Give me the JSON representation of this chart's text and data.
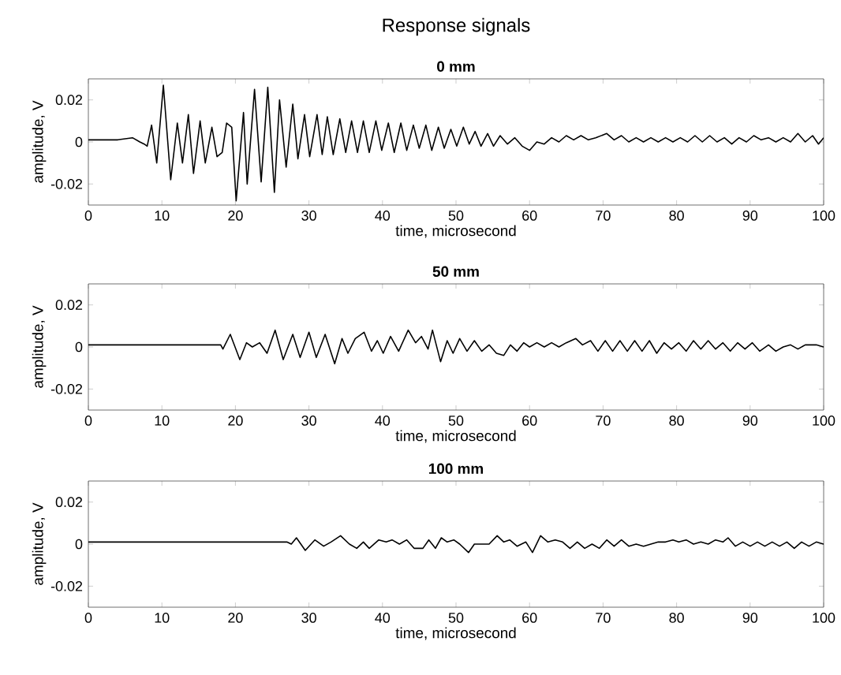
{
  "chart_data": [
    {
      "type": "line",
      "title": "Response signals",
      "subtitle": "0 mm",
      "xlabel": "time, microsecond",
      "ylabel": "amplitude, V",
      "color": "#000000",
      "xlim": [
        0,
        100
      ],
      "xticks": [
        0,
        10,
        20,
        30,
        40,
        50,
        60,
        70,
        80,
        90,
        100
      ],
      "ylim": [
        -0.03,
        0.03
      ],
      "yticks": [
        -0.02,
        0,
        0.02
      ],
      "x": [
        0,
        2,
        4,
        6,
        7,
        7.6,
        8,
        8.6,
        9.3,
        10.2,
        11.2,
        12.1,
        12.8,
        13.6,
        14.3,
        15.2,
        15.9,
        16.8,
        17.5,
        18.2,
        18.8,
        19.5,
        20.1,
        21.1,
        21.6,
        22.6,
        23.5,
        24.4,
        25.3,
        26.0,
        26.9,
        27.8,
        28.5,
        29.4,
        30.1,
        31.1,
        31.8,
        32.5,
        33.3,
        34.2,
        35.0,
        35.8,
        36.6,
        37.4,
        38.2,
        39.1,
        39.9,
        40.8,
        41.6,
        42.5,
        43.3,
        44.2,
        45.0,
        45.9,
        46.7,
        47.6,
        48.4,
        49.3,
        50.1,
        51.0,
        51.8,
        52.6,
        53.4,
        54.3,
        55.1,
        56,
        57,
        58,
        59,
        60,
        61,
        62,
        63,
        64,
        65,
        66,
        67,
        68,
        69,
        70.5,
        71.5,
        72.5,
        73.5,
        74.5,
        75.5,
        76.5,
        77.5,
        78.5,
        79.5,
        80.5,
        81.5,
        82.5,
        83.5,
        84.5,
        85.5,
        86.5,
        87.5,
        88.5,
        89.5,
        90.5,
        91.5,
        92.5,
        93.5,
        94.5,
        95.5,
        96.5,
        97.5,
        98.5,
        99.3,
        100
      ],
      "values": [
        0.001,
        0.001,
        0.001,
        0.002,
        0,
        -0.001,
        -0.002,
        0.008,
        -0.01,
        0.027,
        -0.018,
        0.009,
        -0.01,
        0.013,
        -0.015,
        0.01,
        -0.01,
        0.007,
        -0.007,
        -0.005,
        0.009,
        0.007,
        -0.028,
        0.014,
        -0.02,
        0.025,
        -0.019,
        0.026,
        -0.024,
        0.02,
        -0.012,
        0.018,
        -0.008,
        0.013,
        -0.007,
        0.013,
        -0.006,
        0.012,
        -0.006,
        0.011,
        -0.005,
        0.01,
        -0.005,
        0.01,
        -0.005,
        0.01,
        -0.004,
        0.009,
        -0.005,
        0.009,
        -0.004,
        0.008,
        -0.003,
        0.008,
        -0.004,
        0.007,
        -0.003,
        0.006,
        -0.002,
        0.007,
        -0.001,
        0.005,
        -0.002,
        0.004,
        -0.002,
        0.003,
        -0.001,
        0.002,
        -0.002,
        -0.004,
        0,
        -0.001,
        0.002,
        0,
        0.003,
        0.001,
        0.003,
        0.001,
        0.002,
        0.004,
        0.001,
        0.003,
        0,
        0.002,
        0,
        0.002,
        0,
        0.002,
        0,
        0.002,
        0,
        0.003,
        0,
        0.003,
        0,
        0.002,
        -0.001,
        0.002,
        0,
        0.003,
        0.001,
        0.002,
        0,
        0.002,
        0,
        0.004,
        0,
        0.003,
        -0.001,
        0.002
      ]
    },
    {
      "type": "line",
      "title": "50 mm",
      "xlabel": "time, microsecond",
      "ylabel": "amplitude, V",
      "color": "#000000",
      "xlim": [
        0,
        100
      ],
      "xticks": [
        0,
        10,
        20,
        30,
        40,
        50,
        60,
        70,
        80,
        90,
        100
      ],
      "ylim": [
        -0.03,
        0.03
      ],
      "yticks": [
        -0.02,
        0,
        0.02
      ],
      "x": [
        0,
        5,
        10,
        15,
        18,
        18.3,
        19.3,
        20.6,
        21.5,
        22.3,
        23.3,
        24.3,
        25.4,
        26.5,
        27.8,
        28.8,
        30.0,
        31.0,
        32.2,
        33.5,
        34.5,
        35.3,
        36.3,
        37.5,
        38.5,
        39.3,
        40.1,
        41.1,
        42.2,
        43.5,
        44.5,
        45.3,
        46.2,
        46.8,
        47.9,
        48.8,
        49.6,
        50.5,
        51.5,
        52.5,
        53.5,
        54.5,
        55.5,
        56.5,
        57.4,
        58.3,
        59.2,
        60,
        61,
        62,
        63,
        64,
        65,
        66.3,
        67.2,
        68.3,
        69.3,
        70.3,
        71.3,
        72.3,
        73.3,
        74.3,
        75.3,
        76.3,
        77.3,
        78.3,
        79.3,
        80.3,
        81.3,
        82.3,
        83.3,
        84.3,
        85.3,
        86.3,
        87.3,
        88.3,
        89.3,
        90.3,
        91.3,
        92.5,
        93.5,
        94.5,
        95.5,
        96.5,
        97.5,
        99,
        100
      ],
      "values": [
        0.001,
        0.001,
        0.001,
        0.001,
        0.001,
        -0.001,
        0.006,
        -0.006,
        0.002,
        0,
        0.002,
        -0.003,
        0.008,
        -0.006,
        0.006,
        -0.005,
        0.007,
        -0.005,
        0.006,
        -0.008,
        0.004,
        -0.003,
        0.004,
        0.007,
        -0.002,
        0.003,
        -0.003,
        0.005,
        -0.002,
        0.008,
        0.002,
        0.005,
        -0.001,
        0.008,
        -0.007,
        0.003,
        -0.003,
        0.004,
        -0.002,
        0.003,
        -0.002,
        0.001,
        -0.003,
        -0.004,
        0.001,
        -0.002,
        0.002,
        0,
        0.002,
        0,
        0.002,
        0,
        0.002,
        0.004,
        0.001,
        0.003,
        -0.002,
        0.003,
        -0.002,
        0.003,
        -0.002,
        0.003,
        -0.002,
        0.003,
        -0.003,
        0.002,
        -0.001,
        0.002,
        -0.002,
        0.003,
        -0.001,
        0.003,
        -0.001,
        0.002,
        -0.002,
        0.002,
        -0.001,
        0.002,
        -0.002,
        0.001,
        -0.002,
        0,
        0.001,
        -0.001,
        0.001,
        0.001,
        0
      ]
    },
    {
      "type": "line",
      "title": "100 mm",
      "xlabel": "time, microsecond",
      "ylabel": "amplitude, V",
      "color": "#000000",
      "xlim": [
        0,
        100
      ],
      "xticks": [
        0,
        10,
        20,
        30,
        40,
        50,
        60,
        70,
        80,
        90,
        100
      ],
      "ylim": [
        -0.03,
        0.03
      ],
      "yticks": [
        -0.02,
        0,
        0.02
      ],
      "x": [
        0,
        5,
        10,
        15,
        20,
        25,
        27,
        27.6,
        28.3,
        29.5,
        30.8,
        32,
        33,
        34.3,
        35.5,
        36.5,
        37.4,
        38.2,
        39.5,
        40.5,
        41.3,
        42.3,
        43.3,
        44.3,
        45.5,
        46.3,
        47.2,
        48,
        48.8,
        49.7,
        50.5,
        51.7,
        52.5,
        53.5,
        54.5,
        55.6,
        56.5,
        57.3,
        58.3,
        59.5,
        60.4,
        61.5,
        62.5,
        63.5,
        64.5,
        65.5,
        66.5,
        67.5,
        68.5,
        69.5,
        70.5,
        71.5,
        72.5,
        73.5,
        74.5,
        75.5,
        76.5,
        77.5,
        78.5,
        79.5,
        80.3,
        81.3,
        82.3,
        83.3,
        84.3,
        85.3,
        86.3,
        87,
        88,
        89,
        90,
        91,
        92,
        93,
        94,
        95,
        96,
        97,
        98,
        99,
        100
      ],
      "values": [
        0.001,
        0.001,
        0.001,
        0.001,
        0.001,
        0.001,
        0.001,
        0,
        0.003,
        -0.003,
        0.002,
        -0.001,
        0.001,
        0.004,
        0,
        -0.002,
        0.001,
        -0.002,
        0.002,
        0.001,
        0.002,
        0,
        0.002,
        -0.002,
        -0.002,
        0.002,
        -0.002,
        0.003,
        0.001,
        0.002,
        0,
        -0.004,
        0,
        0,
        0,
        0.004,
        0.001,
        0.002,
        -0.001,
        0.001,
        -0.004,
        0.004,
        0.001,
        0.002,
        0.001,
        -0.002,
        0.001,
        -0.002,
        0,
        -0.002,
        0.002,
        -0.001,
        0.002,
        -0.001,
        0,
        -0.001,
        0,
        0.001,
        0.001,
        0.002,
        0.001,
        0.002,
        0,
        0.001,
        0,
        0.002,
        0.001,
        0.003,
        -0.001,
        0.001,
        -0.001,
        0.001,
        -0.001,
        0.001,
        -0.001,
        0.001,
        -0.002,
        0.001,
        -0.001,
        0.001,
        0
      ]
    }
  ]
}
